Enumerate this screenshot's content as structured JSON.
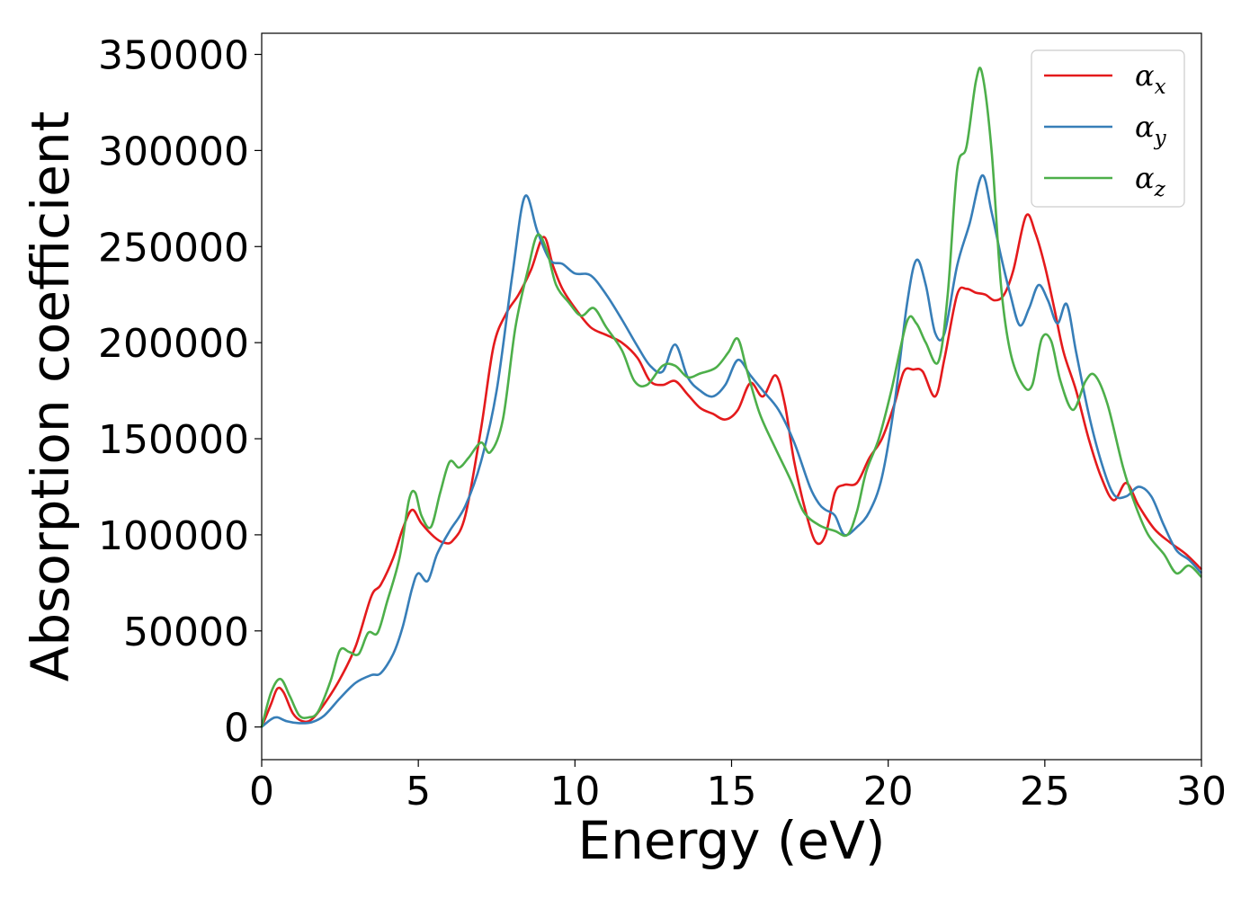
{
  "chart_data": {
    "type": "line",
    "xlabel": "Energy (eV)",
    "ylabel": "Absorption coefficient",
    "xlim": [
      0,
      30
    ],
    "ylim": [
      -17000,
      361000
    ],
    "xticks": [
      0,
      5,
      10,
      15,
      20,
      25,
      30
    ],
    "yticks": [
      0,
      50000,
      100000,
      150000,
      200000,
      250000,
      300000,
      350000
    ],
    "xtick_labels": [
      "0",
      "5",
      "10",
      "15",
      "20",
      "25",
      "30"
    ],
    "ytick_labels": [
      "0",
      "50000",
      "100000",
      "150000",
      "200000",
      "250000",
      "300000",
      "350000"
    ],
    "grid": false,
    "legend_position": "top-right",
    "series": [
      {
        "name": "αx",
        "base": "α",
        "sub": "x",
        "color": "#e41a1c",
        "points": [
          [
            0,
            0
          ],
          [
            0.3,
            12000
          ],
          [
            0.5,
            20000
          ],
          [
            0.7,
            18000
          ],
          [
            1.0,
            7000
          ],
          [
            1.3,
            3000
          ],
          [
            1.6,
            4000
          ],
          [
            2.0,
            12000
          ],
          [
            2.5,
            25000
          ],
          [
            3.0,
            42000
          ],
          [
            3.5,
            68000
          ],
          [
            3.8,
            74000
          ],
          [
            4.2,
            88000
          ],
          [
            4.5,
            103000
          ],
          [
            4.8,
            113000
          ],
          [
            5.1,
            106000
          ],
          [
            5.5,
            99000
          ],
          [
            5.8,
            96000
          ],
          [
            6.1,
            97000
          ],
          [
            6.5,
            110000
          ],
          [
            7.0,
            155000
          ],
          [
            7.4,
            198000
          ],
          [
            7.8,
            215000
          ],
          [
            8.2,
            225000
          ],
          [
            8.6,
            238000
          ],
          [
            9.0,
            255000
          ],
          [
            9.3,
            240000
          ],
          [
            9.6,
            228000
          ],
          [
            10.0,
            218000
          ],
          [
            10.5,
            208000
          ],
          [
            11.0,
            204000
          ],
          [
            11.5,
            200000
          ],
          [
            12.0,
            192000
          ],
          [
            12.4,
            180000
          ],
          [
            12.8,
            178000
          ],
          [
            13.2,
            180000
          ],
          [
            13.6,
            173000
          ],
          [
            14.0,
            166000
          ],
          [
            14.4,
            163000
          ],
          [
            14.8,
            160000
          ],
          [
            15.2,
            165000
          ],
          [
            15.6,
            179000
          ],
          [
            16.0,
            172000
          ],
          [
            16.4,
            183000
          ],
          [
            16.7,
            168000
          ],
          [
            17.0,
            138000
          ],
          [
            17.4,
            110000
          ],
          [
            17.7,
            96000
          ],
          [
            18.0,
            100000
          ],
          [
            18.3,
            122000
          ],
          [
            18.6,
            126000
          ],
          [
            19.0,
            127000
          ],
          [
            19.4,
            140000
          ],
          [
            19.8,
            150000
          ],
          [
            20.2,
            168000
          ],
          [
            20.5,
            185000
          ],
          [
            20.8,
            186000
          ],
          [
            21.1,
            185000
          ],
          [
            21.5,
            172000
          ],
          [
            21.8,
            192000
          ],
          [
            22.2,
            225000
          ],
          [
            22.5,
            228000
          ],
          [
            22.8,
            226000
          ],
          [
            23.1,
            225000
          ],
          [
            23.4,
            222000
          ],
          [
            23.7,
            225000
          ],
          [
            24.0,
            238000
          ],
          [
            24.4,
            266000
          ],
          [
            24.7,
            257000
          ],
          [
            25.0,
            240000
          ],
          [
            25.3,
            218000
          ],
          [
            25.6,
            195000
          ],
          [
            26.0,
            175000
          ],
          [
            26.4,
            150000
          ],
          [
            26.8,
            130000
          ],
          [
            27.2,
            118000
          ],
          [
            27.6,
            127000
          ],
          [
            28.0,
            115000
          ],
          [
            28.5,
            103000
          ],
          [
            29.0,
            96000
          ],
          [
            29.5,
            90000
          ],
          [
            30.0,
            82000
          ]
        ]
      },
      {
        "name": "αy",
        "base": "α",
        "sub": "y",
        "color": "#377eb8",
        "points": [
          [
            0,
            0
          ],
          [
            0.3,
            4000
          ],
          [
            0.5,
            5000
          ],
          [
            0.8,
            3000
          ],
          [
            1.2,
            2000
          ],
          [
            1.6,
            2500
          ],
          [
            2.0,
            6000
          ],
          [
            2.5,
            15000
          ],
          [
            3.0,
            23000
          ],
          [
            3.5,
            27000
          ],
          [
            3.8,
            28000
          ],
          [
            4.2,
            38000
          ],
          [
            4.5,
            52000
          ],
          [
            4.8,
            72000
          ],
          [
            5.0,
            80000
          ],
          [
            5.3,
            76000
          ],
          [
            5.6,
            90000
          ],
          [
            6.0,
            102000
          ],
          [
            6.5,
            115000
          ],
          [
            7.0,
            138000
          ],
          [
            7.5,
            175000
          ],
          [
            8.0,
            235000
          ],
          [
            8.4,
            276000
          ],
          [
            8.8,
            258000
          ],
          [
            9.2,
            243000
          ],
          [
            9.6,
            241000
          ],
          [
            10.0,
            236000
          ],
          [
            10.5,
            235000
          ],
          [
            11.0,
            225000
          ],
          [
            11.5,
            212000
          ],
          [
            12.0,
            198000
          ],
          [
            12.4,
            188000
          ],
          [
            12.8,
            185000
          ],
          [
            13.2,
            199000
          ],
          [
            13.6,
            182000
          ],
          [
            14.0,
            175000
          ],
          [
            14.4,
            172000
          ],
          [
            14.8,
            178000
          ],
          [
            15.2,
            191000
          ],
          [
            15.6,
            183000
          ],
          [
            16.0,
            175000
          ],
          [
            16.5,
            165000
          ],
          [
            17.0,
            148000
          ],
          [
            17.5,
            125000
          ],
          [
            17.8,
            116000
          ],
          [
            18.0,
            113000
          ],
          [
            18.3,
            110000
          ],
          [
            18.6,
            100000
          ],
          [
            19.0,
            104000
          ],
          [
            19.4,
            112000
          ],
          [
            19.8,
            130000
          ],
          [
            20.2,
            168000
          ],
          [
            20.6,
            220000
          ],
          [
            20.9,
            243000
          ],
          [
            21.2,
            230000
          ],
          [
            21.5,
            205000
          ],
          [
            21.8,
            205000
          ],
          [
            22.2,
            240000
          ],
          [
            22.6,
            262000
          ],
          [
            23.0,
            287000
          ],
          [
            23.3,
            268000
          ],
          [
            23.6,
            245000
          ],
          [
            23.9,
            225000
          ],
          [
            24.2,
            209000
          ],
          [
            24.5,
            218000
          ],
          [
            24.8,
            230000
          ],
          [
            25.1,
            222000
          ],
          [
            25.4,
            210000
          ],
          [
            25.7,
            220000
          ],
          [
            26.0,
            195000
          ],
          [
            26.4,
            163000
          ],
          [
            26.8,
            138000
          ],
          [
            27.2,
            121000
          ],
          [
            27.6,
            120000
          ],
          [
            28.0,
            125000
          ],
          [
            28.4,
            120000
          ],
          [
            28.8,
            105000
          ],
          [
            29.2,
            92000
          ],
          [
            29.6,
            87000
          ],
          [
            30.0,
            80000
          ]
        ]
      },
      {
        "name": "αz",
        "base": "α",
        "sub": "z",
        "color": "#4daf4a",
        "points": [
          [
            0,
            0
          ],
          [
            0.3,
            18000
          ],
          [
            0.6,
            25000
          ],
          [
            0.9,
            16000
          ],
          [
            1.2,
            6000
          ],
          [
            1.5,
            5000
          ],
          [
            1.8,
            8000
          ],
          [
            2.2,
            24000
          ],
          [
            2.5,
            40000
          ],
          [
            2.8,
            39000
          ],
          [
            3.1,
            38000
          ],
          [
            3.4,
            49000
          ],
          [
            3.7,
            49000
          ],
          [
            4.0,
            65000
          ],
          [
            4.4,
            88000
          ],
          [
            4.7,
            118000
          ],
          [
            4.9,
            122000
          ],
          [
            5.1,
            110000
          ],
          [
            5.4,
            104000
          ],
          [
            5.7,
            122000
          ],
          [
            6.0,
            138000
          ],
          [
            6.3,
            135000
          ],
          [
            6.6,
            140000
          ],
          [
            7.0,
            148000
          ],
          [
            7.3,
            143000
          ],
          [
            7.7,
            160000
          ],
          [
            8.1,
            208000
          ],
          [
            8.5,
            238000
          ],
          [
            8.8,
            256000
          ],
          [
            9.1,
            248000
          ],
          [
            9.4,
            230000
          ],
          [
            9.8,
            221000
          ],
          [
            10.2,
            214000
          ],
          [
            10.6,
            218000
          ],
          [
            11.0,
            208000
          ],
          [
            11.5,
            196000
          ],
          [
            11.9,
            180000
          ],
          [
            12.3,
            178000
          ],
          [
            12.8,
            188000
          ],
          [
            13.2,
            188000
          ],
          [
            13.6,
            182000
          ],
          [
            14.0,
            184000
          ],
          [
            14.5,
            187000
          ],
          [
            14.9,
            195000
          ],
          [
            15.2,
            202000
          ],
          [
            15.5,
            185000
          ],
          [
            15.9,
            163000
          ],
          [
            16.4,
            145000
          ],
          [
            16.9,
            128000
          ],
          [
            17.3,
            112000
          ],
          [
            17.8,
            105000
          ],
          [
            18.3,
            102000
          ],
          [
            18.7,
            100000
          ],
          [
            19.0,
            112000
          ],
          [
            19.3,
            133000
          ],
          [
            19.7,
            150000
          ],
          [
            20.1,
            175000
          ],
          [
            20.6,
            211000
          ],
          [
            20.9,
            210000
          ],
          [
            21.2,
            200000
          ],
          [
            21.6,
            190000
          ],
          [
            21.9,
            225000
          ],
          [
            22.2,
            290000
          ],
          [
            22.5,
            302000
          ],
          [
            22.8,
            336000
          ],
          [
            23.0,
            340000
          ],
          [
            23.3,
            300000
          ],
          [
            23.6,
            230000
          ],
          [
            23.9,
            195000
          ],
          [
            24.3,
            178000
          ],
          [
            24.6,
            178000
          ],
          [
            24.9,
            202000
          ],
          [
            25.2,
            201000
          ],
          [
            25.5,
            180000
          ],
          [
            25.9,
            165000
          ],
          [
            26.3,
            180000
          ],
          [
            26.6,
            183000
          ],
          [
            27.0,
            168000
          ],
          [
            27.5,
            135000
          ],
          [
            27.9,
            115000
          ],
          [
            28.3,
            100000
          ],
          [
            28.8,
            90000
          ],
          [
            29.2,
            80000
          ],
          [
            29.6,
            84000
          ],
          [
            30.0,
            78000
          ]
        ]
      }
    ]
  }
}
